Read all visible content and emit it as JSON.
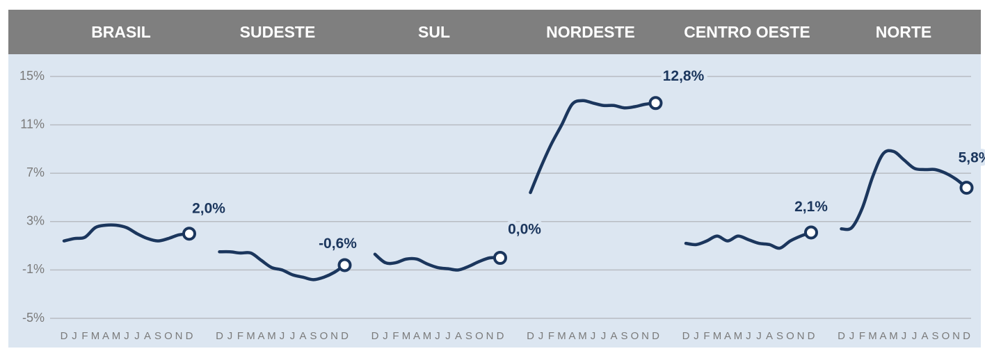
{
  "chart_data": {
    "type": "line",
    "categories": [
      "D",
      "J",
      "F",
      "M",
      "A",
      "M",
      "J",
      "J",
      "A",
      "S",
      "O",
      "N",
      "D"
    ],
    "ylim": [
      -5,
      15
    ],
    "yticks": [
      {
        "value": 15,
        "label": "15%"
      },
      {
        "value": 11,
        "label": "11%"
      },
      {
        "value": 7,
        "label": "7%"
      },
      {
        "value": 3,
        "label": "3%"
      },
      {
        "value": -1,
        "label": "-1%"
      },
      {
        "value": -5,
        "label": "-5%"
      }
    ],
    "grid": true,
    "series": [
      {
        "name": "BRASIL",
        "color": "#1b365d",
        "values": [
          1.4,
          1.6,
          1.7,
          2.5,
          2.7,
          2.7,
          2.5,
          2.0,
          1.6,
          1.4,
          1.6,
          1.9,
          2.0
        ],
        "value_labels": [
          null,
          null,
          null,
          null,
          null,
          null,
          null,
          null,
          null,
          null,
          null,
          null,
          "2,0%"
        ]
      },
      {
        "name": "SUDESTE",
        "color": "#1b365d",
        "values": [
          0.5,
          0.5,
          0.4,
          0.4,
          -0.2,
          -0.8,
          -1.0,
          -1.4,
          -1.6,
          -1.8,
          -1.6,
          -1.2,
          -0.6
        ],
        "value_labels": [
          null,
          null,
          null,
          null,
          null,
          null,
          null,
          null,
          null,
          null,
          null,
          null,
          "-0,6%"
        ]
      },
      {
        "name": "SUL",
        "color": "#1b365d",
        "values": [
          0.3,
          -0.4,
          -0.4,
          -0.1,
          -0.1,
          -0.5,
          -0.8,
          -0.9,
          -1.0,
          -0.7,
          -0.3,
          0.0,
          0.0
        ],
        "value_labels": [
          null,
          null,
          null,
          null,
          null,
          null,
          null,
          null,
          null,
          null,
          null,
          null,
          "0,0%"
        ]
      },
      {
        "name": "NORDESTE",
        "color": "#1b365d",
        "values": [
          5.4,
          7.5,
          9.4,
          11.0,
          12.7,
          13.0,
          12.8,
          12.6,
          12.6,
          12.4,
          12.5,
          12.7,
          12.8
        ],
        "value_labels": [
          null,
          null,
          null,
          null,
          null,
          null,
          null,
          null,
          null,
          null,
          null,
          null,
          "12,8%"
        ]
      },
      {
        "name": "CENTRO OESTE",
        "color": "#1b365d",
        "values": [
          1.2,
          1.1,
          1.4,
          1.8,
          1.4,
          1.8,
          1.5,
          1.2,
          1.1,
          0.8,
          1.4,
          1.8,
          2.1
        ],
        "value_labels": [
          null,
          null,
          null,
          null,
          null,
          null,
          null,
          null,
          null,
          null,
          null,
          null,
          "2,1%"
        ]
      },
      {
        "name": "NORTE",
        "color": "#1b365d",
        "values": [
          2.4,
          2.5,
          4.1,
          6.7,
          8.6,
          8.8,
          8.1,
          7.4,
          7.3,
          7.3,
          7.0,
          6.5,
          5.8
        ],
        "value_labels": [
          null,
          null,
          null,
          null,
          null,
          null,
          null,
          null,
          null,
          null,
          null,
          null,
          "5,8%"
        ]
      }
    ]
  }
}
